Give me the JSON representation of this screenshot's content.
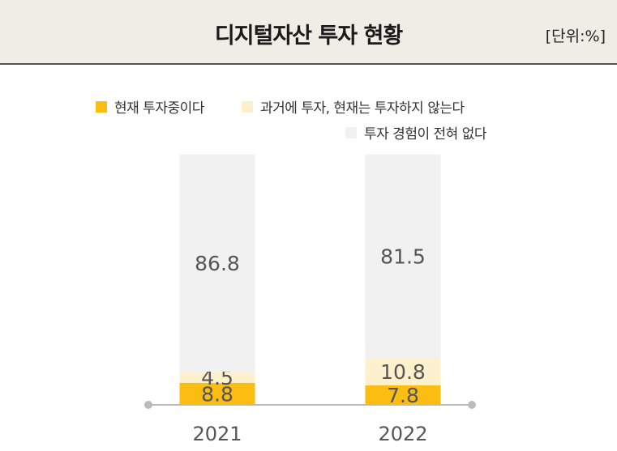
{
  "header": {
    "title": "디지털자산 투자 현황",
    "unit": "[단위:%]"
  },
  "colors": {
    "current": "#fbbd12",
    "past": "#fdf0cc",
    "never": "#f1f1f1",
    "axis": "#bbbbbb",
    "text": "#555555"
  },
  "chart_data": {
    "type": "bar",
    "stacked": true,
    "categories": [
      "2021",
      "2022"
    ],
    "series": [
      {
        "name": "현재 투자중이다",
        "values": [
          8.8,
          7.8
        ]
      },
      {
        "name": "과거에 투자, 현재는 투자하지 않는다",
        "values": [
          4.5,
          10.8
        ]
      },
      {
        "name": "투자 경험이 전혀 없다",
        "values": [
          86.8,
          81.5
        ]
      }
    ],
    "ylim": [
      0,
      100
    ],
    "legend_position": "top-right",
    "grid": false
  }
}
